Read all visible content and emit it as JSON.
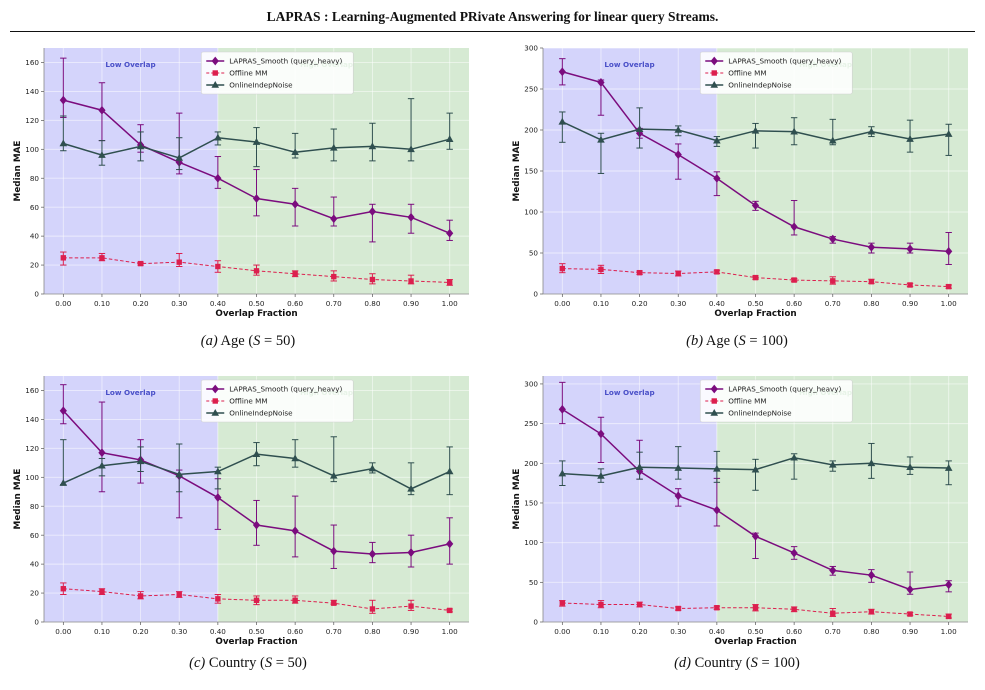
{
  "page": {
    "title": "LAPRAS : Learning-Augmented PRivate Answering for linear query Streams."
  },
  "colors": {
    "low_region": "#d4d4fb",
    "high_region": "#d6ead3",
    "low_text": "#4a50c8",
    "high_text": "#3a9a3a",
    "lapras": "#7b0c7e",
    "offline": "#dc1f4e",
    "online": "#2f4f4f",
    "grid": "#ffffff"
  },
  "captions": [
    {
      "tag": "(a)",
      "text": "Age (",
      "s": "S",
      "eq": " = 50)"
    },
    {
      "tag": "(b)",
      "text": "Age (",
      "s": "S",
      "eq": " = 100)"
    },
    {
      "tag": "(c)",
      "text": "Country (",
      "s": "S",
      "eq": " = 50)"
    },
    {
      "tag": "(d)",
      "text": "Country (",
      "s": "S",
      "eq": " = 100)"
    }
  ],
  "chart_data": [
    {
      "type": "line",
      "xlabel": "Overlap Fraction",
      "ylabel": "Median MAE",
      "ylim": [
        0,
        170
      ],
      "yticks": [
        0,
        20,
        40,
        60,
        80,
        100,
        120,
        140,
        160
      ],
      "x": [
        0.0,
        0.1,
        0.2,
        0.3,
        0.4,
        0.5,
        0.6,
        0.7,
        0.8,
        0.9,
        1.0
      ],
      "xticks": [
        "0.00",
        "0.10",
        "0.20",
        "0.30",
        "0.40",
        "0.50",
        "0.60",
        "0.70",
        "0.80",
        "0.90",
        "1.00"
      ],
      "regions": [
        {
          "label": "Low Overlap",
          "from": -0.05,
          "to": 0.4
        },
        {
          "label": "High Overlap",
          "from": 0.4,
          "to": 1.05
        }
      ],
      "legend": "top-center",
      "series": [
        {
          "name": "LAPRAS_Smooth (query_heavy)",
          "marker": "diamond",
          "values": [
            134,
            127,
            103,
            91,
            80,
            66,
            62,
            52,
            57,
            53,
            42
          ],
          "err_low": [
            122,
            106,
            98,
            83,
            73,
            54,
            47,
            47,
            36,
            42,
            37
          ],
          "err_high": [
            163,
            146,
            117,
            125,
            95,
            86,
            73,
            67,
            62,
            62,
            51
          ]
        },
        {
          "name": "Offline MM",
          "marker": "square",
          "dashed": true,
          "values": [
            25,
            25,
            21,
            22,
            19,
            16,
            14,
            12,
            10,
            9,
            8
          ],
          "err_low": [
            20,
            23,
            20,
            19,
            15,
            13,
            12,
            9,
            7,
            7,
            6
          ],
          "err_high": [
            29,
            28,
            22,
            28,
            23,
            20,
            16,
            16,
            14,
            13,
            10
          ]
        },
        {
          "name": "OnlineIndepNoise",
          "marker": "triangle",
          "values": [
            104,
            96,
            102,
            94,
            108,
            105,
            98,
            101,
            102,
            100,
            107
          ],
          "err_low": [
            99,
            89,
            92,
            86,
            103,
            88,
            94,
            92,
            92,
            92,
            100
          ],
          "err_high": [
            123,
            106,
            112,
            108,
            112,
            115,
            111,
            114,
            118,
            135,
            125
          ]
        }
      ]
    },
    {
      "type": "line",
      "xlabel": "Overlap Fraction",
      "ylabel": "Median MAE",
      "ylim": [
        0,
        300
      ],
      "yticks": [
        0,
        50,
        100,
        150,
        200,
        250,
        300
      ],
      "x": [
        0.0,
        0.1,
        0.2,
        0.3,
        0.4,
        0.5,
        0.6,
        0.7,
        0.8,
        0.9,
        1.0
      ],
      "xticks": [
        "0.00",
        "0.10",
        "0.20",
        "0.30",
        "0.40",
        "0.50",
        "0.60",
        "0.70",
        "0.80",
        "0.90",
        "1.00"
      ],
      "regions": [
        {
          "label": "Low Overlap",
          "from": -0.05,
          "to": 0.4
        },
        {
          "label": "High Overlap",
          "from": 0.4,
          "to": 1.05
        }
      ],
      "legend": "top-center",
      "series": [
        {
          "name": "LAPRAS_Smooth (query_heavy)",
          "marker": "diamond",
          "values": [
            271,
            258,
            196,
            170,
            141,
            108,
            82,
            67,
            57,
            55,
            52
          ],
          "err_low": [
            255,
            218,
            190,
            140,
            120,
            102,
            72,
            62,
            50,
            50,
            36
          ],
          "err_high": [
            287,
            261,
            202,
            183,
            149,
            113,
            114,
            70,
            62,
            62,
            75
          ]
        },
        {
          "name": "Offline MM",
          "marker": "square",
          "dashed": true,
          "values": [
            31,
            30,
            26,
            25,
            27,
            20,
            17,
            16,
            15,
            11,
            9
          ],
          "err_low": [
            26,
            25,
            24,
            22,
            25,
            18,
            15,
            12,
            13,
            9,
            7
          ],
          "err_high": [
            37,
            35,
            28,
            28,
            29,
            22,
            19,
            21,
            18,
            13,
            11
          ]
        },
        {
          "name": "OnlineIndepNoise",
          "marker": "triangle",
          "values": [
            210,
            188,
            201,
            200,
            187,
            199,
            198,
            187,
            198,
            189,
            195
          ],
          "err_low": [
            185,
            147,
            178,
            193,
            180,
            178,
            182,
            182,
            192,
            173,
            169
          ],
          "err_high": [
            222,
            196,
            227,
            205,
            192,
            208,
            215,
            213,
            204,
            212,
            207
          ]
        }
      ]
    },
    {
      "type": "line",
      "xlabel": "Overlap Fraction",
      "ylabel": "Median MAE",
      "ylim": [
        0,
        170
      ],
      "yticks": [
        0,
        20,
        40,
        60,
        80,
        100,
        120,
        140,
        160
      ],
      "x": [
        0.0,
        0.1,
        0.2,
        0.3,
        0.4,
        0.5,
        0.6,
        0.7,
        0.8,
        0.9,
        1.0
      ],
      "xticks": [
        "0.00",
        "0.10",
        "0.20",
        "0.30",
        "0.40",
        "0.50",
        "0.60",
        "0.70",
        "0.80",
        "0.90",
        "1.00"
      ],
      "regions": [
        {
          "label": "Low Overlap",
          "from": -0.05,
          "to": 0.4
        },
        {
          "label": "High Overlap",
          "from": 0.4,
          "to": 1.05
        }
      ],
      "legend": "top-center",
      "series": [
        {
          "name": "LAPRAS_Smooth (query_heavy)",
          "marker": "diamond",
          "values": [
            146,
            117,
            112,
            101,
            86,
            67,
            63,
            49,
            47,
            48,
            54
          ],
          "err_low": [
            137,
            90,
            96,
            72,
            64,
            53,
            45,
            37,
            41,
            38,
            40
          ],
          "err_high": [
            164,
            152,
            126,
            105,
            99,
            84,
            87,
            67,
            55,
            60,
            72
          ]
        },
        {
          "name": "Offline MM",
          "marker": "square",
          "dashed": true,
          "values": [
            23,
            21,
            18,
            19,
            16,
            15,
            15,
            13,
            9,
            11,
            8
          ],
          "err_low": [
            19,
            19,
            16,
            17,
            13,
            12,
            13,
            12,
            6,
            8,
            7
          ],
          "err_high": [
            27,
            23,
            21,
            21,
            19,
            18,
            18,
            15,
            15,
            15,
            9
          ]
        },
        {
          "name": "OnlineIndepNoise",
          "marker": "triangle",
          "values": [
            96,
            108,
            111,
            102,
            104,
            116,
            113,
            101,
            106,
            92,
            104
          ],
          "err_low": [
            95,
            101,
            104,
            90,
            92,
            108,
            107,
            97,
            103,
            88,
            88
          ],
          "err_high": [
            126,
            113,
            121,
            123,
            107,
            124,
            126,
            128,
            110,
            110,
            121
          ]
        }
      ]
    },
    {
      "type": "line",
      "xlabel": "Overlap Fraction",
      "ylabel": "Median MAE",
      "ylim": [
        0,
        310
      ],
      "yticks": [
        0,
        50,
        100,
        150,
        200,
        250,
        300
      ],
      "x": [
        0.0,
        0.1,
        0.2,
        0.3,
        0.4,
        0.5,
        0.6,
        0.7,
        0.8,
        0.9,
        1.0
      ],
      "xticks": [
        "0.00",
        "0.10",
        "0.20",
        "0.30",
        "0.40",
        "0.50",
        "0.60",
        "0.70",
        "0.80",
        "0.90",
        "1.00"
      ],
      "regions": [
        {
          "label": "Low Overlap",
          "from": -0.05,
          "to": 0.4
        },
        {
          "label": "High Overlap",
          "from": 0.4,
          "to": 1.05
        }
      ],
      "legend": "top-center",
      "series": [
        {
          "name": "LAPRAS_Smooth (query_heavy)",
          "marker": "diamond",
          "values": [
            268,
            237,
            190,
            159,
            141,
            108,
            87,
            65,
            59,
            41,
            47
          ],
          "err_low": [
            250,
            201,
            180,
            146,
            121,
            80,
            79,
            59,
            50,
            35,
            38
          ],
          "err_high": [
            302,
            258,
            229,
            168,
            181,
            112,
            95,
            70,
            66,
            63,
            52
          ]
        },
        {
          "name": "Offline MM",
          "marker": "square",
          "dashed": true,
          "values": [
            24,
            22,
            22,
            17,
            18,
            18,
            16,
            11,
            13,
            10,
            7
          ],
          "err_low": [
            20,
            18,
            19,
            15,
            16,
            14,
            13,
            7,
            10,
            8,
            5
          ],
          "err_high": [
            27,
            27,
            25,
            19,
            20,
            22,
            19,
            17,
            16,
            12,
            10
          ]
        },
        {
          "name": "OnlineIndepNoise",
          "marker": "triangle",
          "values": [
            187,
            184,
            195,
            194,
            193,
            192,
            207,
            198,
            200,
            195,
            194
          ],
          "err_low": [
            172,
            176,
            180,
            180,
            176,
            166,
            180,
            190,
            181,
            186,
            173
          ],
          "err_high": [
            203,
            193,
            214,
            221,
            215,
            205,
            212,
            203,
            225,
            208,
            203
          ]
        }
      ]
    }
  ]
}
